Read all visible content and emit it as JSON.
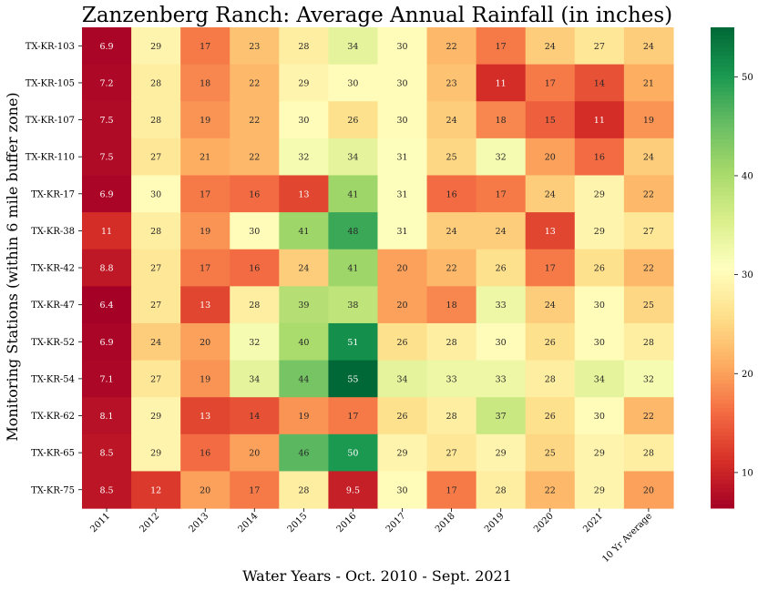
{
  "chart_data": {
    "type": "heatmap",
    "title": "Zanzenberg Ranch: Average Annual Rainfall (in inches)",
    "xlabel": "Water Years - Oct. 2010 - Sept. 2021",
    "ylabel": "Monitoring Stations (within 6 mile buffer zone)",
    "columns": [
      "2011",
      "2012",
      "2013",
      "2014",
      "2015",
      "2016",
      "2017",
      "2018",
      "2019",
      "2020",
      "2021",
      "10 Yr Average"
    ],
    "rows": [
      "TX-KR-103",
      "TX-KR-105",
      "TX-KR-107",
      "TX-KR-110",
      "TX-KR-17",
      "TX-KR-38",
      "TX-KR-42",
      "TX-KR-47",
      "TX-KR-52",
      "TX-KR-54",
      "TX-KR-62",
      "TX-KR-65",
      "TX-KR-75"
    ],
    "values": [
      [
        6.9,
        29,
        17,
        23,
        28,
        34,
        30,
        22,
        17,
        24,
        27,
        24
      ],
      [
        7.2,
        28,
        18,
        22,
        29,
        30,
        30,
        23,
        11,
        17,
        14,
        21
      ],
      [
        7.5,
        28,
        19,
        22,
        30,
        26,
        30,
        24,
        18,
        15,
        11,
        19
      ],
      [
        7.5,
        27,
        21,
        22,
        32,
        34,
        31,
        25,
        32,
        20,
        16,
        24
      ],
      [
        6.9,
        30,
        17,
        16,
        13,
        41,
        31,
        16,
        17,
        24,
        29,
        22
      ],
      [
        11,
        28,
        19,
        30,
        41,
        48,
        31,
        24,
        24,
        13,
        29,
        27
      ],
      [
        8.8,
        27,
        17,
        16,
        24,
        41,
        20,
        22,
        26,
        17,
        26,
        22
      ],
      [
        6.4,
        27,
        13,
        28,
        39,
        38,
        20,
        18,
        33,
        24,
        30,
        25
      ],
      [
        6.9,
        24,
        20,
        32,
        40,
        51,
        26,
        28,
        30,
        26,
        30,
        28
      ],
      [
        7.1,
        27,
        19,
        34,
        44,
        55,
        34,
        33,
        33,
        28,
        34,
        32
      ],
      [
        8.1,
        29,
        13,
        14,
        19,
        17,
        26,
        28,
        37,
        26,
        30,
        22
      ],
      [
        8.5,
        29,
        16,
        20,
        46,
        50,
        29,
        27,
        29,
        25,
        29,
        28
      ],
      [
        8.5,
        12,
        20,
        17,
        28,
        9.5,
        30,
        17,
        28,
        22,
        29,
        20
      ]
    ],
    "colormap": "RdYlGn",
    "colorbar": {
      "min": 6.4,
      "max": 55,
      "ticks": [
        10,
        20,
        30,
        40,
        50
      ]
    },
    "legend": "colorbar-right",
    "grid": false
  }
}
